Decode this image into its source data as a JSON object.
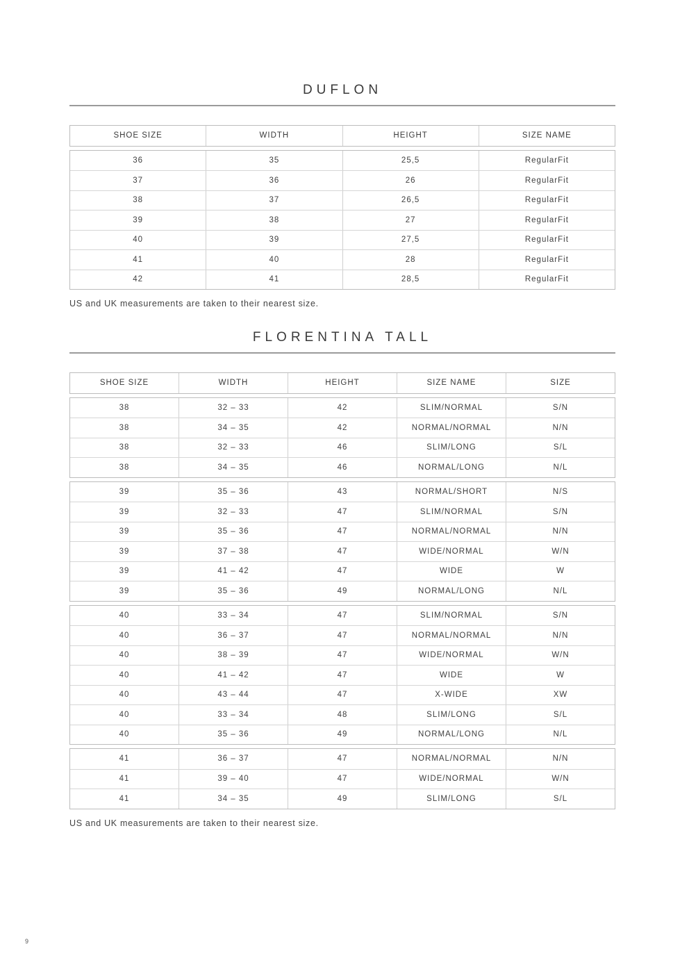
{
  "page": {
    "number": "9"
  },
  "colors": {
    "text": "#3f3f3f",
    "border_outer": "#bcbcbc",
    "border_inner": "#d6d6d6",
    "title_rule": "#9a9a9a",
    "background": "#ffffff"
  },
  "tables": [
    {
      "title": "DUFLON",
      "note": "US and UK measurements are taken to their nearest size.",
      "headers": [
        "SHOE SIZE",
        "WIDTH",
        "HEIGHT",
        "SIZE NAME"
      ],
      "groups": [
        {
          "rows": [
            [
              "36",
              "35",
              "25,5",
              "RegularFit"
            ],
            [
              "37",
              "36",
              "26",
              "RegularFit"
            ],
            [
              "38",
              "37",
              "26,5",
              "RegularFit"
            ],
            [
              "39",
              "38",
              "27",
              "RegularFit"
            ],
            [
              "40",
              "39",
              "27,5",
              "RegularFit"
            ],
            [
              "41",
              "40",
              "28",
              "RegularFit"
            ],
            [
              "42",
              "41",
              "28,5",
              "RegularFit"
            ]
          ]
        }
      ]
    },
    {
      "title": "FLORENTINA TALL",
      "note": "US and UK measurements are taken to their nearest size.",
      "headers": [
        "SHOE SIZE",
        "WIDTH",
        "HEIGHT",
        "SIZE NAME",
        "SIZE"
      ],
      "groups": [
        {
          "rows": [
            [
              "38",
              "32 – 33",
              "42",
              "SLIM/NORMAL",
              "S/N"
            ],
            [
              "38",
              "34 – 35",
              "42",
              "NORMAL/NORMAL",
              "N/N"
            ],
            [
              "38",
              "32 – 33",
              "46",
              "SLIM/LONG",
              "S/L"
            ],
            [
              "38",
              "34 – 35",
              "46",
              "NORMAL/LONG",
              "N/L"
            ]
          ]
        },
        {
          "rows": [
            [
              "39",
              "35 – 36",
              "43",
              "NORMAL/SHORT",
              "N/S"
            ],
            [
              "39",
              "32 – 33",
              "47",
              "SLIM/NORMAL",
              "S/N"
            ],
            [
              "39",
              "35 – 36",
              "47",
              "NORMAL/NORMAL",
              "N/N"
            ],
            [
              "39",
              "37 – 38",
              "47",
              "WIDE/NORMAL",
              "W/N"
            ],
            [
              "39",
              "41 – 42",
              "47",
              "WIDE",
              "W"
            ],
            [
              "39",
              "35 – 36",
              "49",
              "NORMAL/LONG",
              "N/L"
            ]
          ]
        },
        {
          "rows": [
            [
              "40",
              "33 – 34",
              "47",
              "SLIM/NORMAL",
              "S/N"
            ],
            [
              "40",
              "36 – 37",
              "47",
              "NORMAL/NORMAL",
              "N/N"
            ],
            [
              "40",
              "38 – 39",
              "47",
              "WIDE/NORMAL",
              "W/N"
            ],
            [
              "40",
              "41 – 42",
              "47",
              "WIDE",
              "W"
            ],
            [
              "40",
              "43 – 44",
              "47",
              "X-WIDE",
              "XW"
            ],
            [
              "40",
              "33 – 34",
              "48",
              "SLIM/LONG",
              "S/L"
            ],
            [
              "40",
              "35 – 36",
              "49",
              "NORMAL/LONG",
              "N/L"
            ]
          ]
        },
        {
          "rows": [
            [
              "41",
              "36 – 37",
              "47",
              "NORMAL/NORMAL",
              "N/N"
            ],
            [
              "41",
              "39 – 40",
              "47",
              "WIDE/NORMAL",
              "W/N"
            ],
            [
              "41",
              "34 – 35",
              "49",
              "SLIM/LONG",
              "S/L"
            ]
          ]
        }
      ]
    }
  ]
}
